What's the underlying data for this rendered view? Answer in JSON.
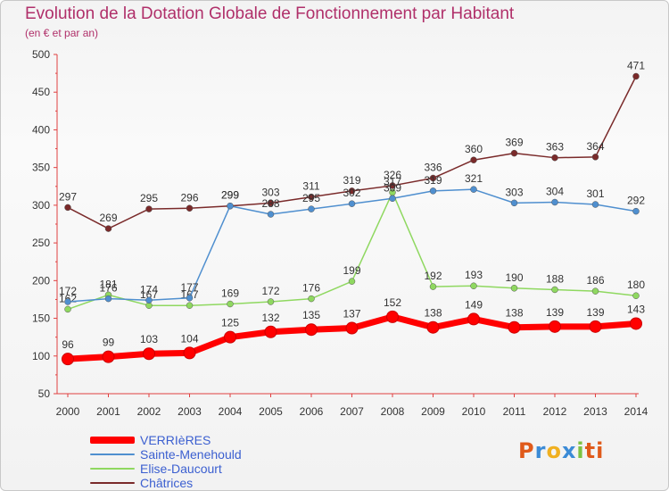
{
  "title": "Evolution de la Dotation Globale de Fonctionnement par Habitant",
  "subtitle": "(en € et par an)",
  "logo": [
    "P",
    "r",
    "o",
    "x",
    "i",
    "ti"
  ],
  "chart_data": {
    "type": "line",
    "x": [
      "2000",
      "2001",
      "2002",
      "2003",
      "2004",
      "2005",
      "2006",
      "2007",
      "2008",
      "2009",
      "2010",
      "2011",
      "2012",
      "2013",
      "2014"
    ],
    "ylim": [
      50,
      500
    ],
    "yticks": [
      50,
      100,
      150,
      200,
      250,
      300,
      350,
      400,
      450,
      500
    ],
    "grid": false,
    "legend_position": "bottom-left",
    "series": [
      {
        "name": "VERRIèRES",
        "color": "#ff0000",
        "values": [
          96,
          99,
          103,
          104,
          125,
          132,
          135,
          137,
          152,
          138,
          149,
          138,
          139,
          139,
          143
        ]
      },
      {
        "name": "Sainte-Menehould",
        "color": "#4f8fcf",
        "values": [
          172,
          176,
          174,
          177,
          299,
          288,
          295,
          302,
          309,
          319,
          321,
          303,
          304,
          301,
          292
        ]
      },
      {
        "name": "Elise-Daucourt",
        "color": "#8fd860",
        "values": [
          162,
          181,
          167,
          167,
          169,
          172,
          176,
          199,
          317,
          192,
          193,
          190,
          188,
          186,
          180
        ]
      },
      {
        "name": "Châtrices",
        "color": "#7a2a2a",
        "values": [
          297,
          269,
          295,
          296,
          299,
          303,
          311,
          319,
          326,
          336,
          360,
          369,
          363,
          364,
          471
        ]
      }
    ]
  }
}
